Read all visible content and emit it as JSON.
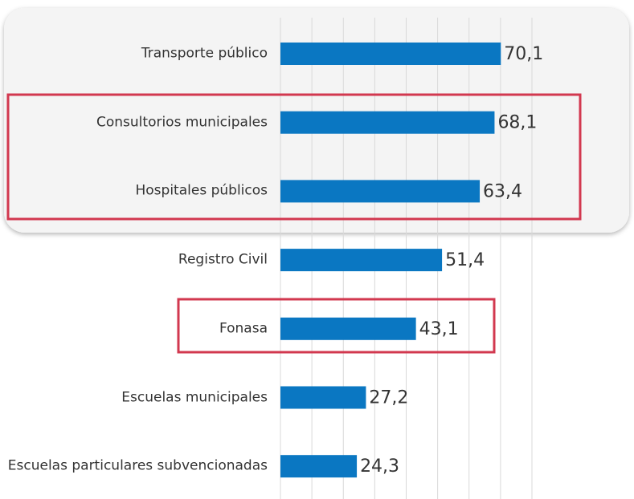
{
  "chart_data": {
    "type": "bar",
    "orientation": "horizontal",
    "categories": [
      "Transporte público",
      "Consultorios municipales",
      "Hospitales públicos",
      "Registro Civil",
      "Fonasa",
      "Escuelas municipales",
      "Escuelas particulares subvencionadas"
    ],
    "values": [
      70.1,
      68.1,
      63.4,
      51.4,
      43.1,
      27.2,
      24.3
    ],
    "value_labels": [
      "70,1",
      "68,1",
      "63,4",
      "51,4",
      "43,1",
      "27,2",
      "24,3"
    ],
    "color": "#0a77c2",
    "xlim": [
      0,
      80
    ],
    "xticks": [
      0,
      10,
      20,
      30,
      40,
      50,
      60,
      70,
      80
    ],
    "grid": true
  }
}
